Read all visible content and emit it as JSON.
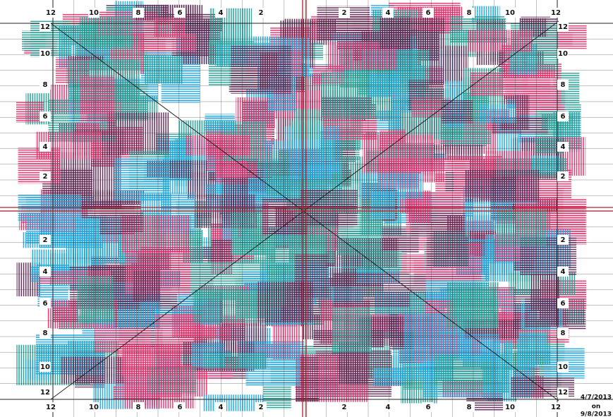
{
  "top_labels": [
    "12",
    "10",
    "8",
    "6",
    "4",
    "2",
    "2",
    "4",
    "6",
    "8",
    "10",
    "12"
  ],
  "bottom_labels": [
    "12",
    "10",
    "8",
    "6",
    "4",
    "2",
    "2",
    "4",
    "6",
    "8",
    "10",
    "12"
  ],
  "left_labels": [
    "12",
    "10",
    "8",
    "6",
    "4",
    "2",
    "2",
    "4",
    "6",
    "8",
    "10",
    "12"
  ],
  "right_labels": [
    "12",
    "10",
    "8",
    "6",
    "4",
    "2",
    "2",
    "4",
    "6",
    "8",
    "10",
    "12"
  ],
  "dates": [
    "4/7/2013",
    "on",
    "9/8/2013"
  ]
}
